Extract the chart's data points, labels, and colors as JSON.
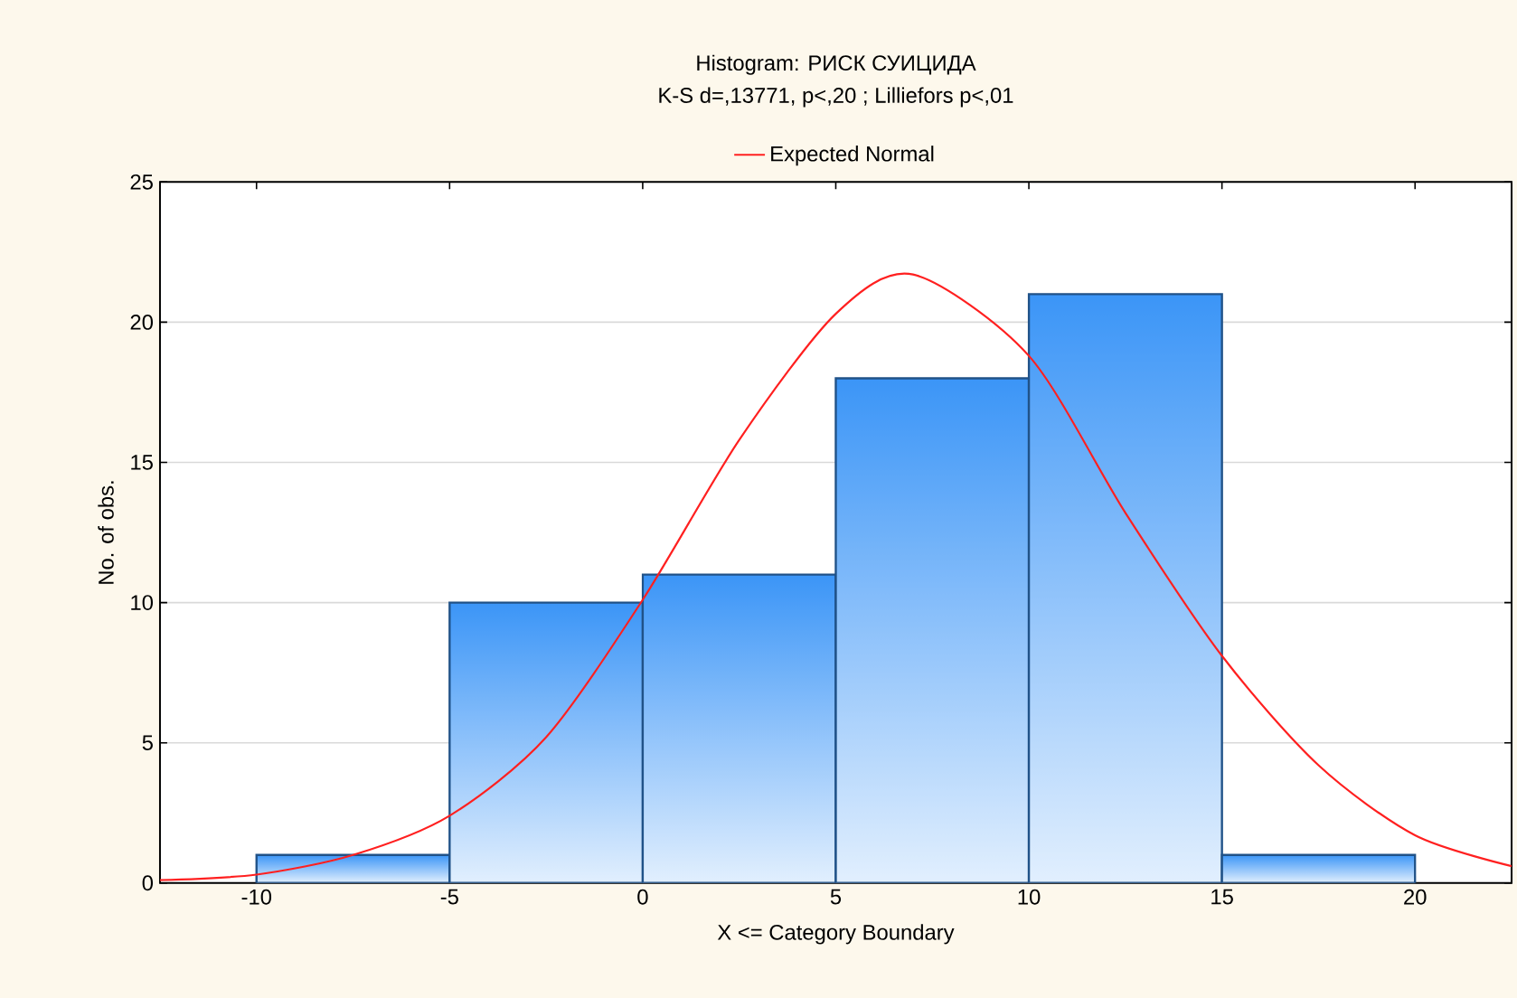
{
  "chart_data": {
    "type": "histogram",
    "title": "Histogram: РИСК СУИЦИДА",
    "subtitle": "K-S d=,13771, p<,20 ; Lilliefors p<,01",
    "xlabel": "X <= Category Boundary",
    "ylabel": "No. of obs.",
    "bins": [
      -10,
      -5,
      0,
      5,
      10,
      15,
      20
    ],
    "values": [
      1,
      10,
      11,
      18,
      21,
      1
    ],
    "color": "#3b95f7",
    "series": [
      {
        "type": "line",
        "name": "Expected Normal",
        "color": "#ff2020",
        "x": [
          -12.5,
          -10,
          -7.5,
          -5,
          -2.5,
          0,
          2.5,
          5,
          7,
          10,
          12.5,
          15,
          17.5,
          20,
          22.5
        ],
        "values": [
          0.1,
          0.3,
          1,
          2.4,
          5.2,
          10.1,
          15.8,
          20.3,
          21.7,
          18.8,
          13.2,
          8.1,
          4.2,
          1.7,
          0.6
        ]
      }
    ],
    "xlim": [
      -12.5,
      22.5
    ],
    "ylim": [
      0,
      25
    ],
    "xticks": [
      -10,
      -5,
      0,
      5,
      10,
      15,
      20
    ],
    "yticks": [
      0,
      5,
      10,
      15,
      20,
      25
    ],
    "grid": "y",
    "legend": "top"
  }
}
